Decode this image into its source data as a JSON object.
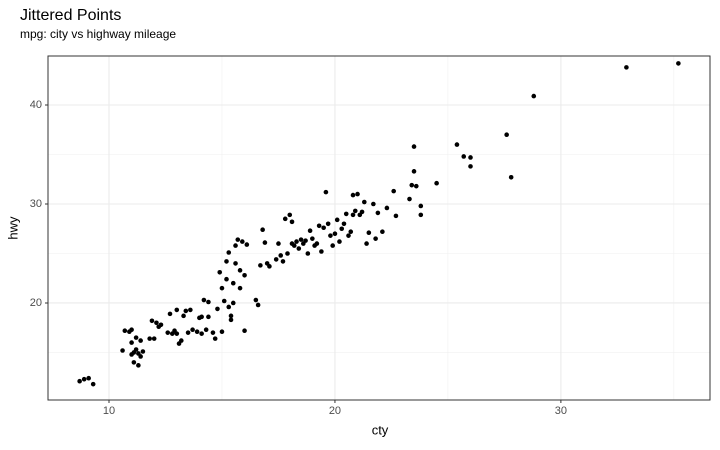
{
  "chart_data": {
    "type": "scatter",
    "title": "Jittered Points",
    "subtitle": "mpg: city vs highway mileage",
    "x_label": "cty",
    "y_label": "hwy",
    "color": "#000000",
    "grid": true,
    "xlim": [
      7.3,
      36.6
    ],
    "ylim": [
      10.2,
      44.95
    ],
    "xticks": [
      10,
      20,
      30
    ],
    "yticks": [
      20,
      30,
      40
    ],
    "xminor": [
      15,
      25,
      35
    ],
    "yminor": [
      15,
      25,
      35
    ],
    "x": [
      8.7,
      8.9,
      9.1,
      9.3,
      10.6,
      10.7,
      10.9,
      11.0,
      11.1,
      11.0,
      11.2,
      11.3,
      11.4,
      11.1,
      11.3,
      11.5,
      11.2,
      11.4,
      11.0,
      11.8,
      12.0,
      11.9,
      12.1,
      12.2,
      12.3,
      12.6,
      12.7,
      12.8,
      12.9,
      13.0,
      13.1,
      13.2,
      13.0,
      13.3,
      13.4,
      13.5,
      13.6,
      13.7,
      13.9,
      14.0,
      14.1,
      14.2,
      14.1,
      14.3,
      14.4,
      14.4,
      14.6,
      14.7,
      14.8,
      14.9,
      15.0,
      15.0,
      15.1,
      15.2,
      15.2,
      15.3,
      15.3,
      15.4,
      15.5,
      15.5,
      15.6,
      15.6,
      15.7,
      15.8,
      15.9,
      16.0,
      16.1,
      16.0,
      15.4,
      15.8,
      16.5,
      16.6,
      16.7,
      16.8,
      16.9,
      17.0,
      17.1,
      17.4,
      17.5,
      17.6,
      17.7,
      17.8,
      17.9,
      18.0,
      18.1,
      18.2,
      18.1,
      18.3,
      18.4,
      18.5,
      18.6,
      18.7,
      18.8,
      18.9,
      19.0,
      19.1,
      19.2,
      19.3,
      19.4,
      19.5,
      19.6,
      19.7,
      19.8,
      19.9,
      20.0,
      20.1,
      20.2,
      20.3,
      20.4,
      20.5,
      20.6,
      20.7,
      20.8,
      20.8,
      20.9,
      21.0,
      21.1,
      21.2,
      21.3,
      21.4,
      21.5,
      21.7,
      21.8,
      21.9,
      22.1,
      22.3,
      22.6,
      22.7,
      23.3,
      23.5,
      23.4,
      23.6,
      23.8,
      23.8,
      23.5,
      24.5,
      25.4,
      25.7,
      26.0,
      26.0,
      27.6,
      27.8,
      28.8,
      32.9,
      35.2
    ],
    "values": [
      12.1,
      12.3,
      12.4,
      11.8,
      15.2,
      17.2,
      17.1,
      16.0,
      15.0,
      14.8,
      15.3,
      14.9,
      14.6,
      14.0,
      13.7,
      15.1,
      16.5,
      16.2,
      17.3,
      16.4,
      16.4,
      18.2,
      18.0,
      17.6,
      17.8,
      17.0,
      18.9,
      16.9,
      17.2,
      16.9,
      15.9,
      16.2,
      19.3,
      18.7,
      19.2,
      17.0,
      19.3,
      17.3,
      17.1,
      18.5,
      16.9,
      20.3,
      18.6,
      17.3,
      20.1,
      18.6,
      17.0,
      16.4,
      19.4,
      23.1,
      17.1,
      21.5,
      20.2,
      24.2,
      22.4,
      19.6,
      25.1,
      18.7,
      20.0,
      22.0,
      24.0,
      25.8,
      26.4,
      23.3,
      26.2,
      22.8,
      25.9,
      17.2,
      18.3,
      21.5,
      20.3,
      19.8,
      23.8,
      27.4,
      26.1,
      24.0,
      23.7,
      24.4,
      26.0,
      24.8,
      24.2,
      28.5,
      25.0,
      28.9,
      26.0,
      25.8,
      28.2,
      26.2,
      25.5,
      26.4,
      26.0,
      26.3,
      25.0,
      27.3,
      26.5,
      25.8,
      26.0,
      27.8,
      25.2,
      27.6,
      31.2,
      28.0,
      26.8,
      25.8,
      27.0,
      28.4,
      26.2,
      27.5,
      28.0,
      29.0,
      26.8,
      27.2,
      30.9,
      28.9,
      29.3,
      31.0,
      28.9,
      29.2,
      30.2,
      26.0,
      27.1,
      30.0,
      26.5,
      29.1,
      27.2,
      29.6,
      31.3,
      28.8,
      30.5,
      33.3,
      31.9,
      31.8,
      29.8,
      28.9,
      35.8,
      32.1,
      36.0,
      34.8,
      34.7,
      33.8,
      37.0,
      32.7,
      40.9,
      43.8,
      44.2
    ]
  }
}
